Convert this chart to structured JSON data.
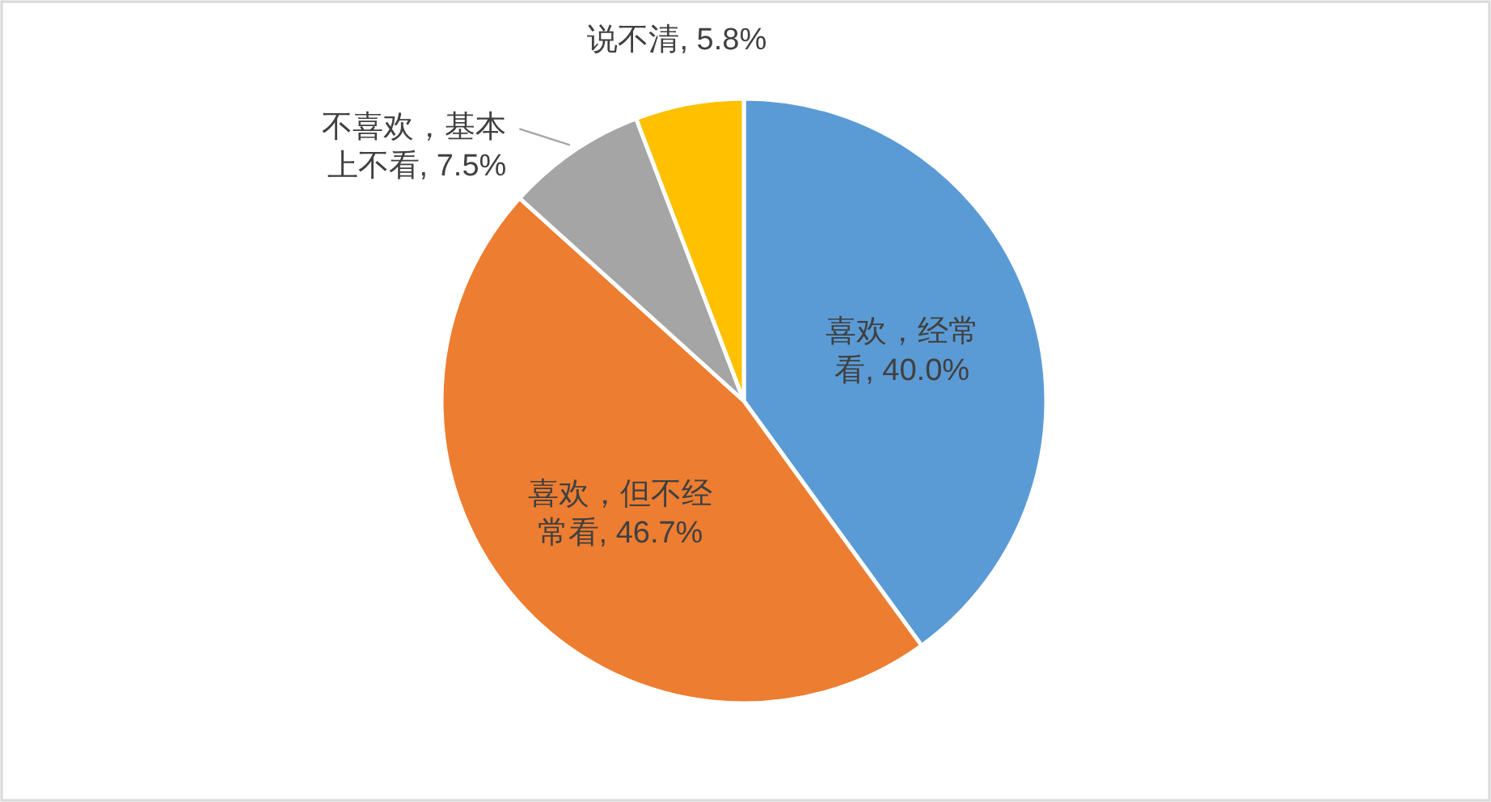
{
  "chart_data": {
    "type": "pie",
    "categories": [
      "喜欢，经常看",
      "喜欢，但不经常看",
      "不喜欢，基本上不看",
      "说不清"
    ],
    "values": [
      40.0,
      46.7,
      7.5,
      5.8
    ],
    "colors": [
      "#5b9bd5",
      "#ed7d31",
      "#a5a5a5",
      "#ffc000"
    ],
    "value_labels": [
      "40.0%",
      "46.7%",
      "7.5%",
      "5.8%"
    ]
  }
}
